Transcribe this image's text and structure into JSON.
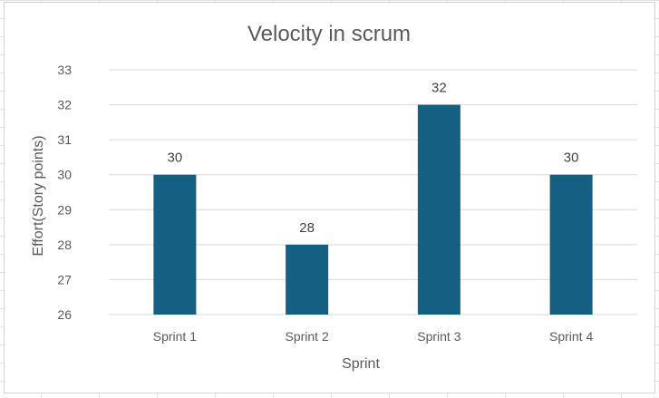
{
  "chart_data": {
    "type": "bar",
    "title": "Velocity in scrum",
    "xlabel": "Sprint",
    "ylabel": "Effort(Story points)",
    "categories": [
      "Sprint 1",
      "Sprint 2",
      "Sprint 3",
      "Sprint 4"
    ],
    "values": [
      30,
      28,
      32,
      30
    ],
    "ylim": [
      26,
      33
    ],
    "yticks": [
      26,
      27,
      28,
      29,
      30,
      31,
      32,
      33
    ],
    "grid": true,
    "data_labels": true,
    "bar_color": "#155F82",
    "gridline_color": "#d9d9d9"
  }
}
